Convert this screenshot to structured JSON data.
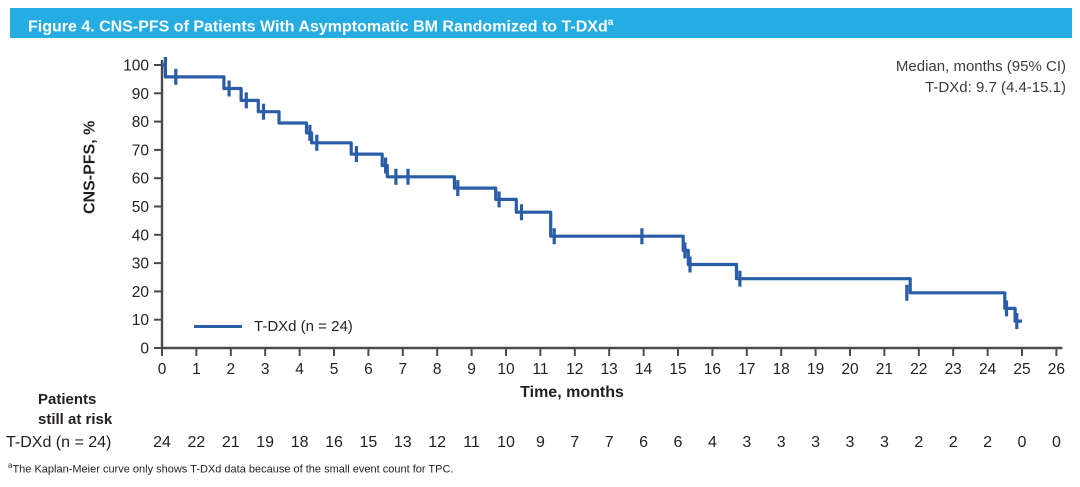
{
  "title_bar": {
    "text": "Figure 4. CNS-PFS of Patients With Asymptomatic BM Randomized to T-DXd",
    "superscript": "a",
    "bg_color": "#25ace3",
    "text_color": "#ffffff"
  },
  "median_annotation": {
    "header": "Median, months (95% CI)",
    "value_line": "T-DXd: 9.7 (4.4-15.1)"
  },
  "axes": {
    "y_title": "CNS-PFS, %",
    "x_title": "Time, months"
  },
  "legend": {
    "label": "T-DXd (n = 24)",
    "line_color": "#2a5da8"
  },
  "risk_table": {
    "header_line1": "Patients",
    "header_line2": "still at risk",
    "row_label": "T-DXd (n = 24)",
    "counts": [
      24,
      22,
      21,
      19,
      18,
      16,
      15,
      13,
      12,
      11,
      10,
      9,
      7,
      7,
      6,
      6,
      4,
      3,
      3,
      3,
      3,
      3,
      2,
      2,
      2,
      0,
      0
    ]
  },
  "footnote": {
    "marker": "a",
    "text": "The Kaplan-Meier curve only shows T-DXd data because of the small event count for TPC."
  },
  "chart_data": {
    "type": "line",
    "subtype": "kaplan_meier_step",
    "title": "CNS-PFS of Patients With Asymptomatic BM Randomized to T-DXd",
    "xlabel": "Time, months",
    "ylabel": "CNS-PFS, %",
    "xlim": [
      0,
      26
    ],
    "ylim": [
      0,
      100
    ],
    "x_ticks": [
      0,
      1,
      2,
      3,
      4,
      5,
      6,
      7,
      8,
      9,
      10,
      11,
      12,
      13,
      14,
      15,
      16,
      17,
      18,
      19,
      20,
      21,
      22,
      23,
      24,
      25,
      26
    ],
    "y_ticks": [
      0,
      10,
      20,
      30,
      40,
      50,
      60,
      70,
      80,
      90,
      100
    ],
    "grid": false,
    "legend_position": "inside-lower-left",
    "axis_color": "#4b4b4d",
    "median_months": 9.7,
    "ci_95": "4.4-15.1",
    "series": [
      {
        "name": "T-DXd (n = 24)",
        "color": "#2a5da8",
        "start": [
          0,
          100
        ],
        "steps": [
          [
            0.1,
            95.8
          ],
          [
            1.8,
            91.7
          ],
          [
            2.3,
            87.5
          ],
          [
            2.8,
            83.5
          ],
          [
            3.4,
            79.5
          ],
          [
            4.2,
            76.0
          ],
          [
            4.35,
            72.5
          ],
          [
            5.5,
            68.5
          ],
          [
            6.4,
            64.5
          ],
          [
            6.55,
            60.5
          ],
          [
            8.5,
            56.5
          ],
          [
            9.7,
            52.5
          ],
          [
            10.3,
            48.0
          ],
          [
            11.3,
            39.5
          ],
          [
            15.15,
            34.5
          ],
          [
            15.3,
            29.5
          ],
          [
            16.7,
            24.5
          ],
          [
            21.75,
            19.5
          ],
          [
            24.5,
            14.0
          ],
          [
            24.8,
            9.5
          ]
        ],
        "end_time": 25.0,
        "censor_marks": [
          [
            0.1,
            100
          ],
          [
            0.4,
            95.8
          ],
          [
            1.95,
            91.7
          ],
          [
            2.45,
            87.5
          ],
          [
            2.95,
            83.5
          ],
          [
            4.3,
            76.0
          ],
          [
            4.5,
            72.5
          ],
          [
            5.65,
            68.5
          ],
          [
            6.5,
            64.5
          ],
          [
            6.8,
            60.5
          ],
          [
            7.15,
            60.5
          ],
          [
            8.6,
            56.5
          ],
          [
            9.8,
            52.5
          ],
          [
            10.45,
            48.0
          ],
          [
            11.4,
            39.5
          ],
          [
            13.95,
            39.5
          ],
          [
            15.2,
            34.5
          ],
          [
            15.35,
            29.5
          ],
          [
            16.8,
            24.5
          ],
          [
            21.65,
            19.5
          ],
          [
            24.55,
            14.0
          ],
          [
            24.85,
            9.5
          ]
        ]
      }
    ],
    "at_risk": {
      "label": "T-DXd (n = 24)",
      "times": [
        0,
        1,
        2,
        3,
        4,
        5,
        6,
        7,
        8,
        9,
        10,
        11,
        12,
        13,
        14,
        15,
        16,
        17,
        18,
        19,
        20,
        21,
        22,
        23,
        24,
        25,
        26
      ],
      "counts": [
        24,
        22,
        21,
        19,
        18,
        16,
        15,
        13,
        12,
        11,
        10,
        9,
        7,
        7,
        6,
        6,
        4,
        3,
        3,
        3,
        3,
        3,
        2,
        2,
        2,
        0,
        0
      ]
    }
  }
}
